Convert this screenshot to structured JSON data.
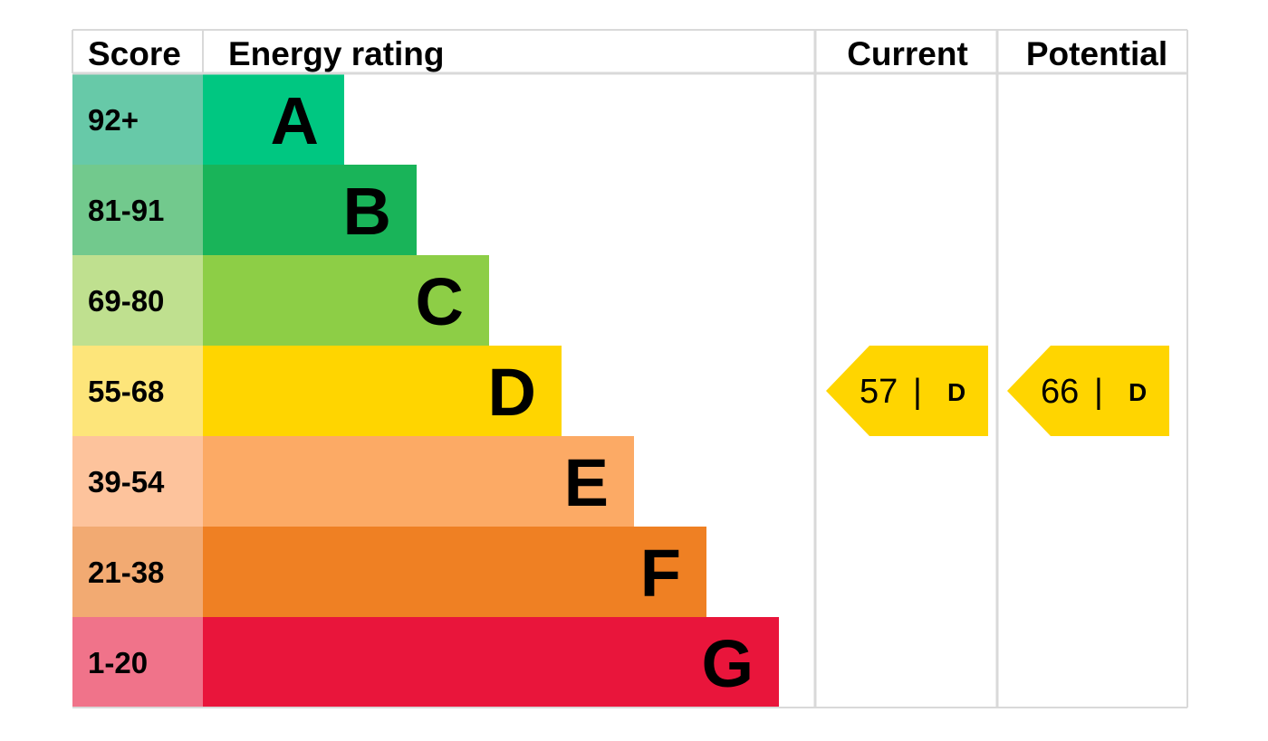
{
  "chart_data": {
    "type": "table",
    "headers": {
      "score": "Score",
      "rating": "Energy rating",
      "current": "Current",
      "potential": "Potential"
    },
    "bands": [
      {
        "letter": "A",
        "range": "92+",
        "min": 92,
        "max": 100,
        "color": "#00c781",
        "score_color": "#67c9a8"
      },
      {
        "letter": "B",
        "range": "81-91",
        "min": 81,
        "max": 91,
        "color": "#19b459",
        "score_color": "#72c98d"
      },
      {
        "letter": "C",
        "range": "69-80",
        "min": 69,
        "max": 80,
        "color": "#8dce46",
        "score_color": "#bfe08f"
      },
      {
        "letter": "D",
        "range": "55-68",
        "min": 55,
        "max": 68,
        "color": "#ffd500",
        "score_color": "#fde57a"
      },
      {
        "letter": "E",
        "range": "39-54",
        "min": 39,
        "max": 54,
        "color": "#fcaa65",
        "score_color": "#fdc39c"
      },
      {
        "letter": "F",
        "range": "21-38",
        "min": 21,
        "max": 38,
        "color": "#ef8023",
        "score_color": "#f2aa72"
      },
      {
        "letter": "G",
        "range": "1-20",
        "min": 1,
        "max": 20,
        "color": "#e9153b",
        "score_color": "#f0738a"
      }
    ],
    "current": {
      "value": 57,
      "separator": "|",
      "letter": "D",
      "color": "#ffd500"
    },
    "potential": {
      "value": 66,
      "separator": "|",
      "letter": "D",
      "color": "#ffd500"
    },
    "grid_color": "#d9d9d9"
  }
}
